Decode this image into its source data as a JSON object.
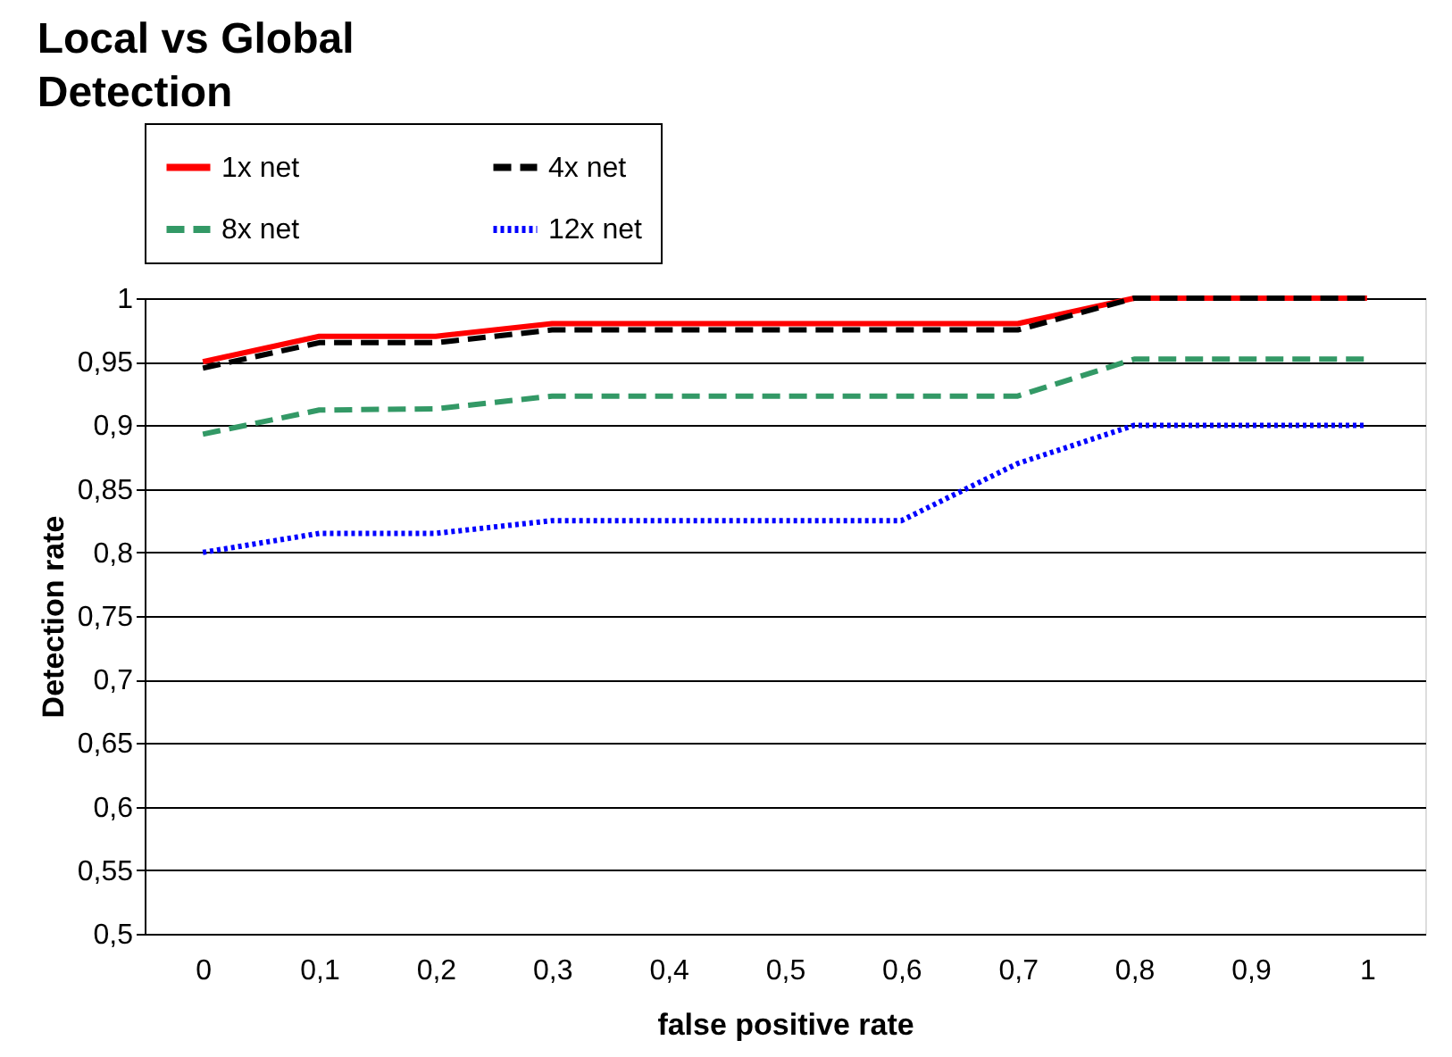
{
  "chart_data": {
    "type": "line",
    "title": "Local vs Global Detection",
    "xlabel": "false positive rate",
    "ylabel": "Detection rate",
    "categories": [
      "0",
      "0,1",
      "0,2",
      "0,3",
      "0,4",
      "0,5",
      "0,6",
      "0,7",
      "0,8",
      "0,9",
      "1"
    ],
    "series": [
      {
        "name": "1x net",
        "color": "#ff0000",
        "line_style": "solid",
        "values": [
          0.95,
          0.97,
          0.97,
          0.98,
          0.98,
          0.98,
          0.98,
          0.98,
          1,
          1,
          1
        ]
      },
      {
        "name": "4x net",
        "color": "#000000",
        "line_style": "dashed",
        "values": [
          0.945,
          0.965,
          0.965,
          0.975,
          0.975,
          0.975,
          0.975,
          0.975,
          1,
          1,
          1
        ]
      },
      {
        "name": "8x net",
        "color": "#339966",
        "line_style": "dashed",
        "values": [
          0.893,
          0.912,
          0.913,
          0.923,
          0.923,
          0.923,
          0.923,
          0.923,
          0.952,
          0.952,
          0.952
        ]
      },
      {
        "name": "12x net",
        "color": "#0000ff",
        "line_style": "dotted",
        "values": [
          0.8,
          0.815,
          0.815,
          0.825,
          0.825,
          0.825,
          0.825,
          0.87,
          0.9,
          0.9,
          0.9
        ]
      }
    ],
    "ylim": [
      0.5,
      1
    ],
    "yticks": [
      {
        "value": 0.5,
        "label": "0,5"
      },
      {
        "value": 0.55,
        "label": "0,55"
      },
      {
        "value": 0.6,
        "label": "0,6"
      },
      {
        "value": 0.65,
        "label": "0,65"
      },
      {
        "value": 0.7,
        "label": "0,7"
      },
      {
        "value": 0.75,
        "label": "0,75"
      },
      {
        "value": 0.8,
        "label": "0,8"
      },
      {
        "value": 0.85,
        "label": "0,85"
      },
      {
        "value": 0.9,
        "label": "0,9"
      },
      {
        "value": 0.95,
        "label": "0,95"
      },
      {
        "value": 1,
        "label": "1"
      }
    ],
    "grid": "y",
    "legend": "top",
    "marker": "none"
  }
}
